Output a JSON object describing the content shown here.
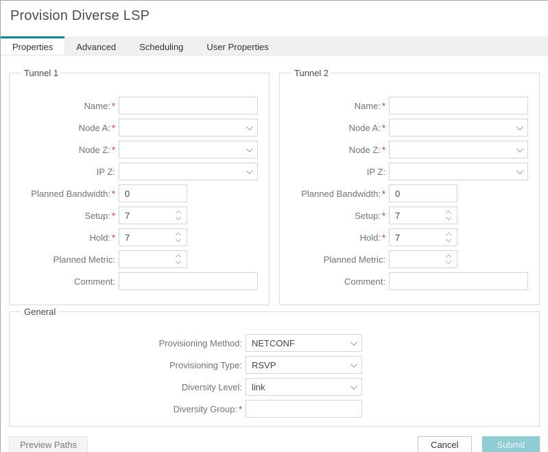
{
  "colors": {
    "accent_teal": "#0c8691",
    "required_red": "#e02b2b",
    "submit_button_bg": "#8fccd4",
    "tab_strip_bg": "#f0f0f0"
  },
  "required_marker": "*",
  "icons": {
    "select_arrow": "chevron-down-icon",
    "spinner_up": "chevron-up-icon",
    "spinner_down": "chevron-down-icon"
  },
  "header": {
    "title": "Provision Diverse LSP"
  },
  "tabs": [
    {
      "label": "Properties",
      "active": true
    },
    {
      "label": "Advanced",
      "active": false
    },
    {
      "label": "Scheduling",
      "active": false
    },
    {
      "label": "User Properties",
      "active": false
    }
  ],
  "tunnel1": {
    "legend": "Tunnel 1",
    "fields": [
      {
        "label": "Name:",
        "required": true,
        "type": "text",
        "value": ""
      },
      {
        "label": "Node A:",
        "required": true,
        "type": "select",
        "value": ""
      },
      {
        "label": "Node Z:",
        "required": true,
        "type": "select",
        "value": ""
      },
      {
        "label": "IP Z:",
        "required": false,
        "type": "select",
        "value": ""
      },
      {
        "label": "Planned Bandwidth:",
        "required": true,
        "type": "text",
        "value": "0"
      },
      {
        "label": "Setup:",
        "required": true,
        "type": "spinner",
        "value": "7"
      },
      {
        "label": "Hold:",
        "required": true,
        "type": "spinner",
        "value": "7"
      },
      {
        "label": "Planned Metric:",
        "required": false,
        "type": "spinner",
        "value": ""
      },
      {
        "label": "Comment:",
        "required": false,
        "type": "text",
        "value": ""
      }
    ]
  },
  "tunnel2": {
    "legend": "Tunnel 2",
    "fields": [
      {
        "label": "Name:",
        "required": true,
        "type": "text",
        "value": ""
      },
      {
        "label": "Node A:",
        "required": true,
        "type": "select",
        "value": ""
      },
      {
        "label": "Node Z:",
        "required": true,
        "type": "select",
        "value": ""
      },
      {
        "label": "IP Z:",
        "required": false,
        "type": "select",
        "value": ""
      },
      {
        "label": "Planned Bandwidth:",
        "required": true,
        "type": "text",
        "value": "0"
      },
      {
        "label": "Setup:",
        "required": true,
        "type": "spinner",
        "value": "7"
      },
      {
        "label": "Hold:",
        "required": true,
        "type": "spinner",
        "value": "7"
      },
      {
        "label": "Planned Metric:",
        "required": false,
        "type": "spinner",
        "value": ""
      },
      {
        "label": "Comment:",
        "required": false,
        "type": "text",
        "value": ""
      }
    ]
  },
  "general": {
    "legend": "General",
    "fields": [
      {
        "label": "Provisioning Method:",
        "required": false,
        "type": "select",
        "value": "NETCONF"
      },
      {
        "label": "Provisioning Type:",
        "required": false,
        "type": "select",
        "value": "RSVP"
      },
      {
        "label": "Diversity Level:",
        "required": false,
        "type": "select",
        "value": "link"
      },
      {
        "label": "Diversity Group:",
        "required": true,
        "type": "text",
        "value": ""
      }
    ]
  },
  "footer": {
    "preview_label": "Preview Paths",
    "cancel_label": "Cancel",
    "submit_label": "Submit"
  }
}
